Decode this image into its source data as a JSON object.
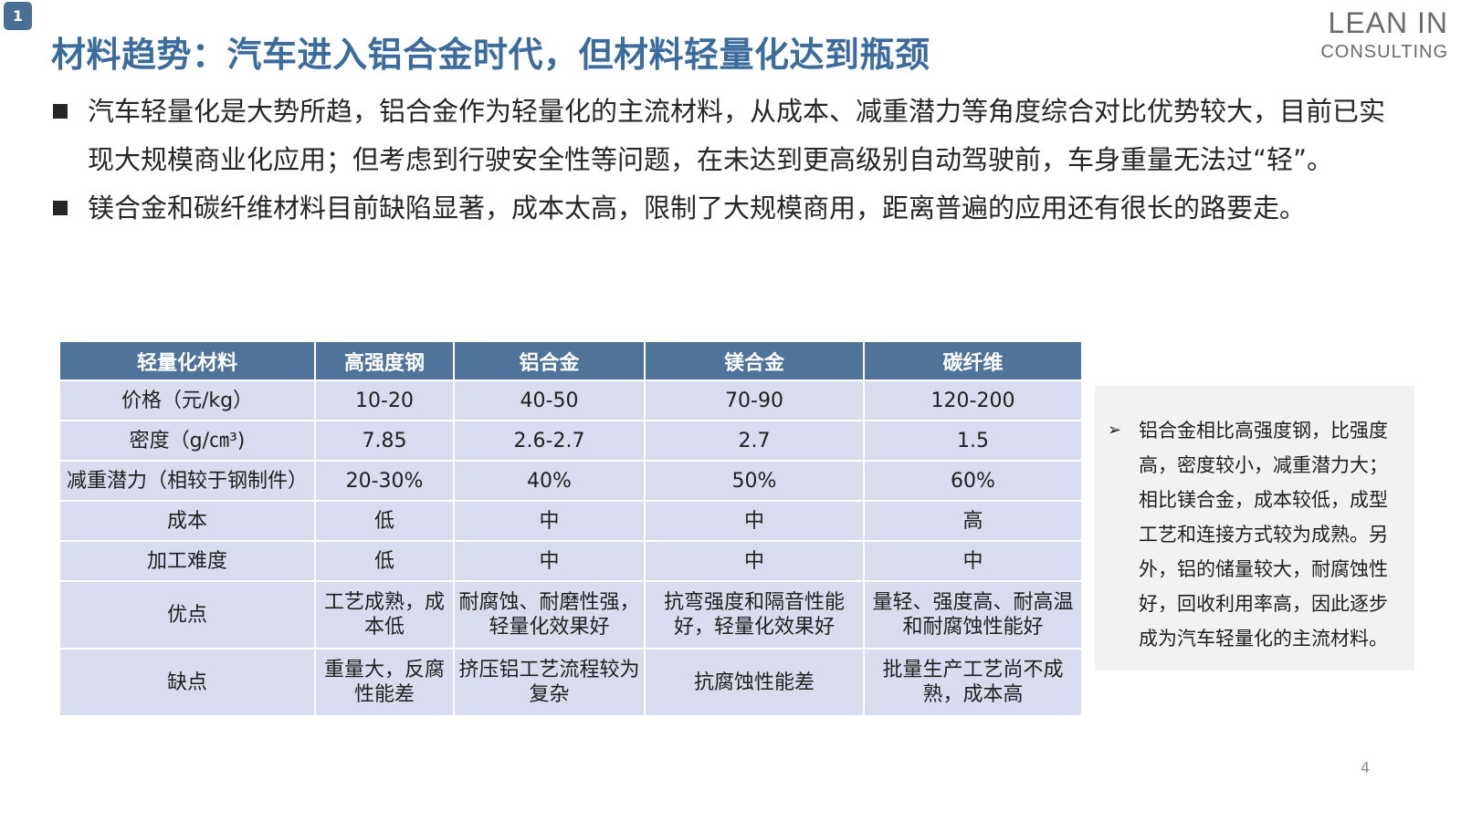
{
  "slide_badge": "1",
  "title": "材料趋势：汽车进入铝合金时代，但材料轻量化达到瓶颈",
  "logo": {
    "line1": "LEAN IN",
    "line2": "CONSULTING"
  },
  "bullets": [
    {
      "text": "汽车轻量化是大势所趋，铝合金作为轻量化的主流材料，从成本、减重潜力等角度综合对比优势较大，目前已实现大规模商业化应用；但考虑到行驶安全性等问题，在未达到更高级别自动驾驶前，车身重量无法过“轻”。"
    },
    {
      "text": "镁合金和碳纤维材料目前缺陷显著，成本太高，限制了大规模商用，距离普遍的应用还有很长的路要走。"
    }
  ],
  "table": {
    "headers": [
      "轻量化材料",
      "高强度钢",
      "铝合金",
      "镁合金",
      "碳纤维"
    ],
    "rows": [
      [
        "价格（元/kg）",
        "10-20",
        "40-50",
        "70-90",
        "120-200"
      ],
      [
        "密度（g/㎝³)",
        "7.85",
        "2.6-2.7",
        "2.7",
        "1.5"
      ],
      [
        "减重潜力（相较于钢制件）",
        "20-30%",
        "40%",
        "50%",
        "60%"
      ],
      [
        "成本",
        "低",
        "中",
        "中",
        "高"
      ],
      [
        "加工难度",
        "低",
        "中",
        "中",
        "中"
      ],
      [
        "优点",
        "工艺成熟，成本低",
        "耐腐蚀、耐磨性强，轻量化效果好",
        "抗弯强度和隔音性能好，轻量化效果好",
        "量轻、强度高、耐高温和耐腐蚀性能好"
      ],
      [
        "缺点",
        "重量大，反腐性能差",
        "挤压铝工艺流程较为复杂",
        "抗腐蚀性能差",
        "批量生产工艺尚不成熟，成本高"
      ]
    ]
  },
  "note": {
    "arrow": "➢",
    "text": "铝合金相比高强度钢，比强度高，密度较小，减重潜力大；相比镁合金，成本较低，成型工艺和连接方式较为成熟。另外，铝的储量较大，耐腐蚀性好，回收利用率高，因此逐步成为汽车轻量化的主流材料。"
  },
  "page_number": "4"
}
